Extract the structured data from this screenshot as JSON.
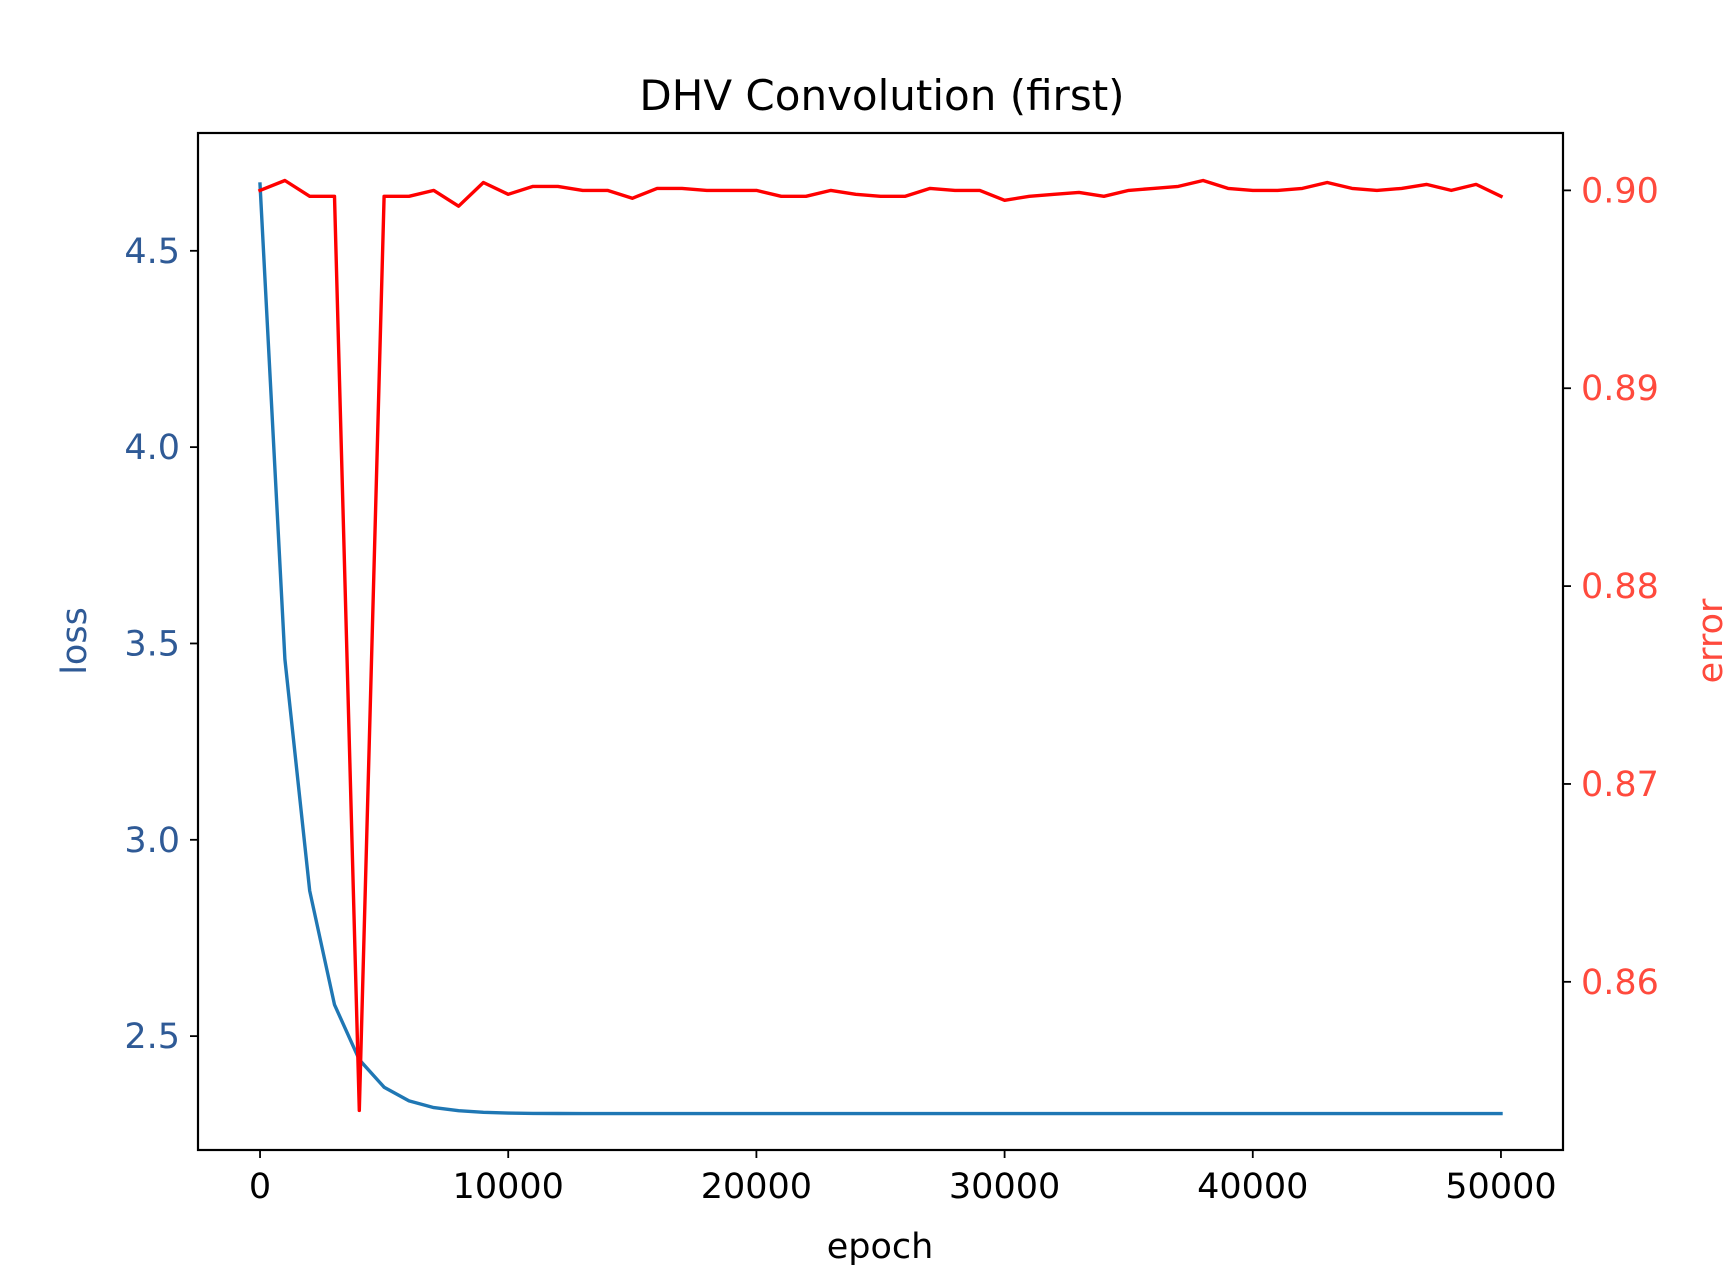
{
  "chart_data": {
    "type": "line",
    "title": "DHV Convolution (first)",
    "xlabel": "epoch",
    "ylabel_left": "loss",
    "ylabel_right": "error",
    "xlim": [
      -2500,
      52500
    ],
    "ylim_left": [
      2.21,
      4.8
    ],
    "ylim_right": [
      0.8515,
      0.9029
    ],
    "xticks": [
      0,
      10000,
      20000,
      30000,
      40000,
      50000
    ],
    "xtick_labels": [
      "0",
      "10000",
      "20000",
      "30000",
      "40000",
      "50000"
    ],
    "yticks_left": [
      2.5,
      3.0,
      3.5,
      4.0,
      4.5
    ],
    "ytick_labels_left": [
      "2.5",
      "3.0",
      "3.5",
      "4.0",
      "4.5"
    ],
    "yticks_right": [
      0.86,
      0.87,
      0.88,
      0.89,
      0.9
    ],
    "ytick_labels_right": [
      "0.86",
      "0.87",
      "0.88",
      "0.89",
      "0.90"
    ],
    "colors": {
      "loss_line": "#1f77b4",
      "error_line": "#ff0000",
      "left_axis_text": "#2f5a96",
      "right_axis_text": "#ff4a3d",
      "frame": "#000000"
    },
    "grid": false,
    "series": [
      {
        "axis": "left",
        "color": "#1f77b4",
        "x": [
          0,
          1000,
          2000,
          3000,
          4000,
          5000,
          6000,
          7000,
          8000,
          9000,
          10000,
          11000,
          12000,
          13000,
          14000,
          15000,
          16000,
          17000,
          18000,
          19000,
          20000,
          21000,
          22000,
          23000,
          24000,
          25000,
          26000,
          27000,
          28000,
          29000,
          30000,
          31000,
          32000,
          33000,
          34000,
          35000,
          36000,
          37000,
          38000,
          39000,
          40000,
          41000,
          42000,
          43000,
          44000,
          45000,
          46000,
          47000,
          48000,
          49000,
          50000
        ],
        "values": [
          4.67,
          3.46,
          2.87,
          2.58,
          2.44,
          2.37,
          2.335,
          2.318,
          2.31,
          2.306,
          2.304,
          2.3032,
          2.3029,
          2.3027,
          2.3026,
          2.3026,
          2.3026,
          2.3026,
          2.3026,
          2.3026,
          2.3026,
          2.3026,
          2.3026,
          2.3026,
          2.3026,
          2.3026,
          2.3026,
          2.3026,
          2.3026,
          2.3026,
          2.3026,
          2.3026,
          2.3026,
          2.3026,
          2.3026,
          2.3026,
          2.3026,
          2.3026,
          2.3026,
          2.3026,
          2.3026,
          2.3026,
          2.3026,
          2.3026,
          2.3026,
          2.3026,
          2.3026,
          2.3026,
          2.3026,
          2.3026,
          2.3026
        ]
      },
      {
        "axis": "right",
        "color": "#ff0000",
        "x": [
          0,
          1000,
          2000,
          3000,
          4000,
          5000,
          6000,
          7000,
          8000,
          9000,
          10000,
          11000,
          12000,
          13000,
          14000,
          15000,
          16000,
          17000,
          18000,
          19000,
          20000,
          21000,
          22000,
          23000,
          24000,
          25000,
          26000,
          27000,
          28000,
          29000,
          30000,
          31000,
          32000,
          33000,
          34000,
          35000,
          36000,
          37000,
          38000,
          39000,
          40000,
          41000,
          42000,
          43000,
          44000,
          45000,
          46000,
          47000,
          48000,
          49000,
          50000
        ],
        "values": [
          0.9,
          0.9005,
          0.8997,
          0.8997,
          0.8535,
          0.8997,
          0.8997,
          0.9,
          0.8992,
          0.9004,
          0.8998,
          0.9002,
          0.9002,
          0.9,
          0.9,
          0.8996,
          0.9001,
          0.9001,
          0.9,
          0.9,
          0.9,
          0.8997,
          0.8997,
          0.9,
          0.8998,
          0.8997,
          0.8997,
          0.9001,
          0.9,
          0.9,
          0.8995,
          0.8997,
          0.8998,
          0.8999,
          0.8997,
          0.9,
          0.9001,
          0.9002,
          0.9005,
          0.9001,
          0.9,
          0.9,
          0.9001,
          0.9004,
          0.9001,
          0.9,
          0.9001,
          0.9003,
          0.9,
          0.9003,
          0.8997
        ]
      }
    ]
  }
}
